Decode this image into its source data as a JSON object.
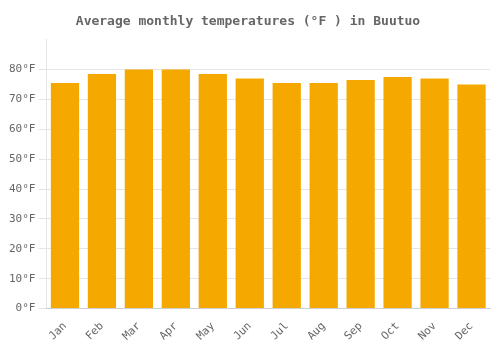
{
  "chart_data": {
    "type": "bar",
    "title": "Average monthly temperatures (°F ) in Buutuo",
    "categories": [
      "Jan",
      "Feb",
      "Mar",
      "Apr",
      "May",
      "Jun",
      "Jul",
      "Aug",
      "Sep",
      "Oct",
      "Nov",
      "Dec"
    ],
    "values": [
      75.5,
      78.5,
      80.0,
      80.0,
      78.5,
      77.0,
      75.5,
      75.5,
      76.5,
      77.5,
      77.0,
      75.0
    ],
    "color": "#F5A800",
    "ylim": [
      0,
      90
    ],
    "yticks": [
      {
        "value": 0,
        "label": "0°F"
      },
      {
        "value": 10,
        "label": "10°F"
      },
      {
        "value": 20,
        "label": "20°F"
      },
      {
        "value": 30,
        "label": "30°F"
      },
      {
        "value": 40,
        "label": "40°F"
      },
      {
        "value": 50,
        "label": "50°F"
      },
      {
        "value": 60,
        "label": "60°F"
      },
      {
        "value": 70,
        "label": "70°F"
      },
      {
        "value": 80,
        "label": "80°F"
      }
    ],
    "grid": true
  }
}
